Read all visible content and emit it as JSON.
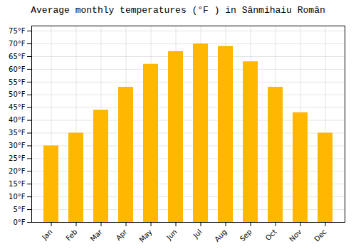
{
  "chart_data": {
    "type": "bar",
    "title": "Average monthly temperatures (°F ) in Sânmihaiu Român",
    "categories": [
      "Jan",
      "Feb",
      "Mar",
      "Apr",
      "May",
      "Jun",
      "Jul",
      "Aug",
      "Sep",
      "Oct",
      "Nov",
      "Dec"
    ],
    "values": [
      30,
      35,
      44,
      53,
      62,
      67,
      70,
      69,
      63,
      53,
      43,
      35
    ],
    "color": "#FFB700",
    "ylim": [
      0,
      77
    ],
    "yticks": [
      {
        "value": 0,
        "label": "0°F"
      },
      {
        "value": 5,
        "label": "5°F"
      },
      {
        "value": 10,
        "label": "10°F"
      },
      {
        "value": 15,
        "label": "15°F"
      },
      {
        "value": 20,
        "label": "20°F"
      },
      {
        "value": 25,
        "label": "25°F"
      },
      {
        "value": 30,
        "label": "30°F"
      },
      {
        "value": 35,
        "label": "35°F"
      },
      {
        "value": 40,
        "label": "40°F"
      },
      {
        "value": 45,
        "label": "45°F"
      },
      {
        "value": 50,
        "label": "50°F"
      },
      {
        "value": 55,
        "label": "55°F"
      },
      {
        "value": 60,
        "label": "60°F"
      },
      {
        "value": 65,
        "label": "65°F"
      },
      {
        "value": 70,
        "label": "70°F"
      },
      {
        "value": 75,
        "label": "75°F"
      }
    ],
    "grid": true
  }
}
